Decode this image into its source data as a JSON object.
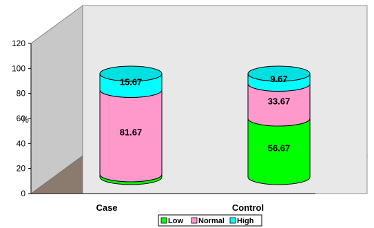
{
  "chart_data": {
    "type": "bar",
    "stacked": true,
    "style": "3d-cylinder",
    "categories": [
      "Case",
      "Control"
    ],
    "series": [
      {
        "name": "Low",
        "values": [
          2.67,
          56.67
        ],
        "color": "#00ff00"
      },
      {
        "name": "Normal",
        "values": [
          81.67,
          33.67
        ],
        "color": "#ff99cc"
      },
      {
        "name": "High",
        "values": [
          15.67,
          9.67
        ],
        "color": "#00ffff"
      }
    ],
    "ylabel": "%",
    "ylim": [
      0,
      120
    ],
    "yticks": [
      "0",
      "20",
      "40",
      "60",
      "80",
      "100",
      "120"
    ],
    "legend_position": "bottom",
    "wall_color": "#e8e8e8",
    "floor_color": "#8b7b6e",
    "side_wall_color": "#c8c8c8"
  }
}
